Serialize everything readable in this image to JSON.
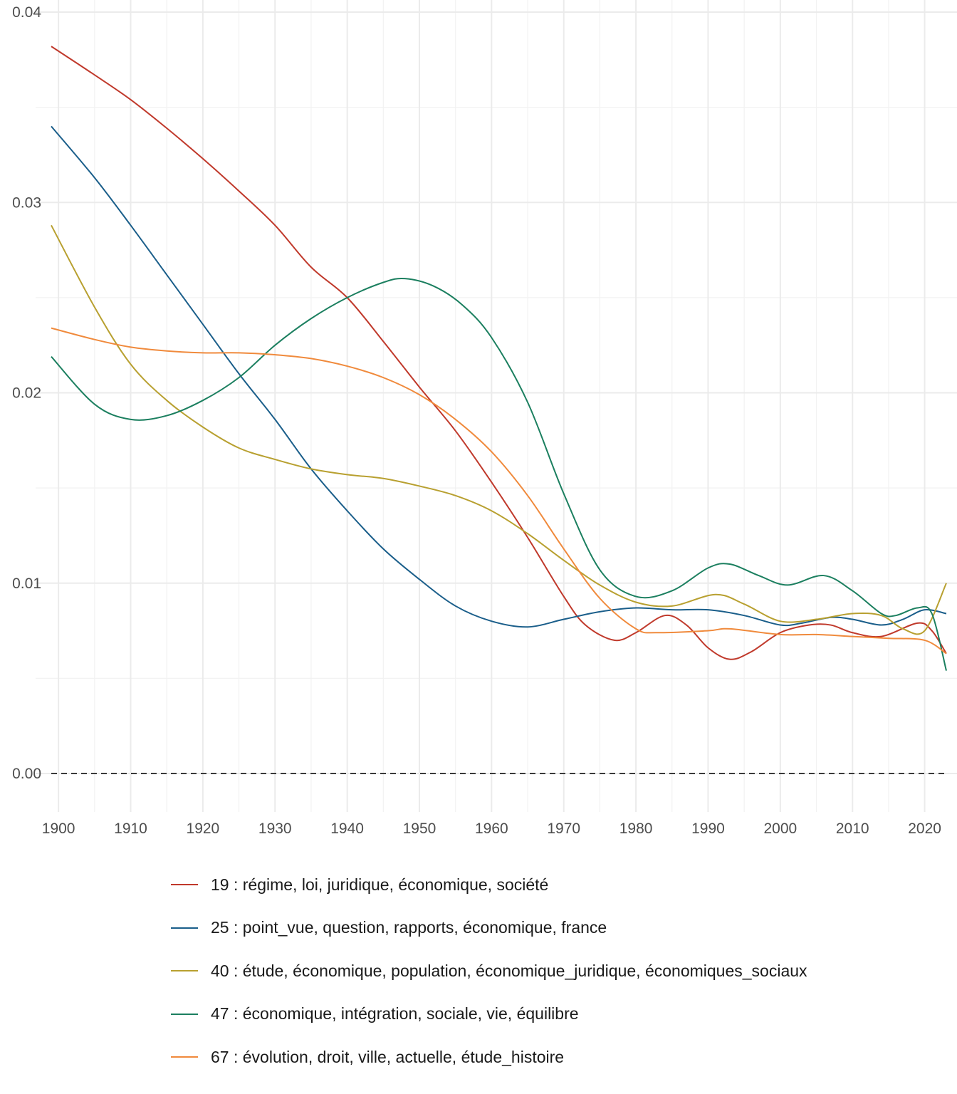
{
  "chart_data": {
    "type": "line",
    "title": "",
    "xlabel": "",
    "ylabel": "",
    "xlim": [
      1899,
      2023
    ],
    "ylim": [
      0,
      0.04
    ],
    "x_ticks": [
      "1900",
      "1910",
      "1920",
      "1930",
      "1940",
      "1950",
      "1960",
      "1970",
      "1980",
      "1990",
      "2000",
      "2010",
      "2020"
    ],
    "y_ticks": [
      "0.00",
      "0.01",
      "0.02",
      "0.03",
      "0.04"
    ],
    "grid": true,
    "zero_reference_line": "dashed",
    "legend_position": "bottom",
    "series": [
      {
        "name": "19 : régime, loi, juridique, économique, société",
        "color": "#c0392b",
        "points": [
          [
            1899,
            0.0382
          ],
          [
            1905,
            0.0367
          ],
          [
            1910,
            0.0354
          ],
          [
            1915,
            0.0339
          ],
          [
            1920,
            0.0323
          ],
          [
            1925,
            0.0306
          ],
          [
            1930,
            0.0288
          ],
          [
            1935,
            0.0266
          ],
          [
            1940,
            0.025
          ],
          [
            1945,
            0.0227
          ],
          [
            1950,
            0.0203
          ],
          [
            1955,
            0.018
          ],
          [
            1960,
            0.0153
          ],
          [
            1965,
            0.0124
          ],
          [
            1970,
            0.0093
          ],
          [
            1973,
            0.0078
          ],
          [
            1977,
            0.007
          ],
          [
            1980,
            0.0074
          ],
          [
            1984,
            0.0083
          ],
          [
            1987,
            0.0078
          ],
          [
            1990,
            0.0066
          ],
          [
            1993,
            0.006
          ],
          [
            1996,
            0.0064
          ],
          [
            2000,
            0.0074
          ],
          [
            2004,
            0.0078
          ],
          [
            2007,
            0.0078
          ],
          [
            2010,
            0.0074
          ],
          [
            2014,
            0.0072
          ],
          [
            2019,
            0.0079
          ],
          [
            2021,
            0.0075
          ],
          [
            2023,
            0.0063
          ]
        ]
      },
      {
        "name": "25 : point_vue, question, rapports, économique, france",
        "color": "#1a5e8a",
        "points": [
          [
            1899,
            0.034
          ],
          [
            1905,
            0.0313
          ],
          [
            1910,
            0.0288
          ],
          [
            1915,
            0.0262
          ],
          [
            1920,
            0.0236
          ],
          [
            1925,
            0.021
          ],
          [
            1930,
            0.0186
          ],
          [
            1935,
            0.016
          ],
          [
            1940,
            0.0138
          ],
          [
            1945,
            0.0118
          ],
          [
            1950,
            0.0102
          ],
          [
            1955,
            0.0088
          ],
          [
            1960,
            0.008
          ],
          [
            1965,
            0.0077
          ],
          [
            1970,
            0.0081
          ],
          [
            1975,
            0.0085
          ],
          [
            1980,
            0.0087
          ],
          [
            1985,
            0.0086
          ],
          [
            1990,
            0.0086
          ],
          [
            1995,
            0.0083
          ],
          [
            2000,
            0.0078
          ],
          [
            2003,
            0.0079
          ],
          [
            2007,
            0.0082
          ],
          [
            2010,
            0.0081
          ],
          [
            2014,
            0.0078
          ],
          [
            2017,
            0.0081
          ],
          [
            2020,
            0.0086
          ],
          [
            2023,
            0.0084
          ]
        ]
      },
      {
        "name": "40 : étude, économique, population, économique_juridique, économiques_sociaux",
        "color": "#b8a030",
        "points": [
          [
            1899,
            0.0288
          ],
          [
            1905,
            0.0245
          ],
          [
            1910,
            0.0215
          ],
          [
            1915,
            0.0196
          ],
          [
            1920,
            0.0182
          ],
          [
            1925,
            0.0171
          ],
          [
            1930,
            0.0165
          ],
          [
            1935,
            0.016
          ],
          [
            1940,
            0.0157
          ],
          [
            1945,
            0.0155
          ],
          [
            1950,
            0.0151
          ],
          [
            1955,
            0.0146
          ],
          [
            1960,
            0.0138
          ],
          [
            1965,
            0.0126
          ],
          [
            1970,
            0.0112
          ],
          [
            1975,
            0.0099
          ],
          [
            1980,
            0.009
          ],
          [
            1985,
            0.0088
          ],
          [
            1991,
            0.0094
          ],
          [
            1995,
            0.0089
          ],
          [
            2000,
            0.008
          ],
          [
            2005,
            0.0081
          ],
          [
            2010,
            0.0084
          ],
          [
            2014,
            0.0083
          ],
          [
            2017,
            0.0076
          ],
          [
            2020,
            0.0075
          ],
          [
            2023,
            0.01
          ]
        ]
      },
      {
        "name": "47 : économique, intégration, sociale, vie, équilibre",
        "color": "#1b7f5f",
        "points": [
          [
            1899,
            0.0219
          ],
          [
            1905,
            0.0194
          ],
          [
            1910,
            0.0186
          ],
          [
            1915,
            0.0188
          ],
          [
            1920,
            0.0196
          ],
          [
            1925,
            0.0208
          ],
          [
            1930,
            0.0225
          ],
          [
            1935,
            0.0239
          ],
          [
            1940,
            0.025
          ],
          [
            1945,
            0.0258
          ],
          [
            1948,
            0.026
          ],
          [
            1952,
            0.0256
          ],
          [
            1956,
            0.0246
          ],
          [
            1960,
            0.0229
          ],
          [
            1965,
            0.0195
          ],
          [
            1970,
            0.0147
          ],
          [
            1975,
            0.0107
          ],
          [
            1980,
            0.0093
          ],
          [
            1985,
            0.0096
          ],
          [
            1990,
            0.0108
          ],
          [
            1993,
            0.011
          ],
          [
            1997,
            0.0104
          ],
          [
            2001,
            0.0099
          ],
          [
            2006,
            0.0104
          ],
          [
            2010,
            0.0096
          ],
          [
            2014,
            0.0084
          ],
          [
            2016,
            0.0083
          ],
          [
            2019,
            0.0087
          ],
          [
            2021,
            0.0084
          ],
          [
            2023,
            0.0054
          ]
        ]
      },
      {
        "name": "67 : évolution, droit, ville, actuelle, étude_histoire",
        "color": "#f08a3c",
        "points": [
          [
            1899,
            0.0234
          ],
          [
            1905,
            0.0228
          ],
          [
            1910,
            0.0224
          ],
          [
            1915,
            0.0222
          ],
          [
            1920,
            0.0221
          ],
          [
            1925,
            0.0221
          ],
          [
            1930,
            0.022
          ],
          [
            1935,
            0.0218
          ],
          [
            1940,
            0.0214
          ],
          [
            1945,
            0.0208
          ],
          [
            1950,
            0.0199
          ],
          [
            1955,
            0.0186
          ],
          [
            1960,
            0.0169
          ],
          [
            1965,
            0.0146
          ],
          [
            1970,
            0.0118
          ],
          [
            1975,
            0.0092
          ],
          [
            1980,
            0.0076
          ],
          [
            1983,
            0.0074
          ],
          [
            1990,
            0.0075
          ],
          [
            1993,
            0.0076
          ],
          [
            2000,
            0.0073
          ],
          [
            2005,
            0.0073
          ],
          [
            2010,
            0.0072
          ],
          [
            2015,
            0.0071
          ],
          [
            2020,
            0.007
          ],
          [
            2023,
            0.0063
          ]
        ]
      }
    ]
  }
}
